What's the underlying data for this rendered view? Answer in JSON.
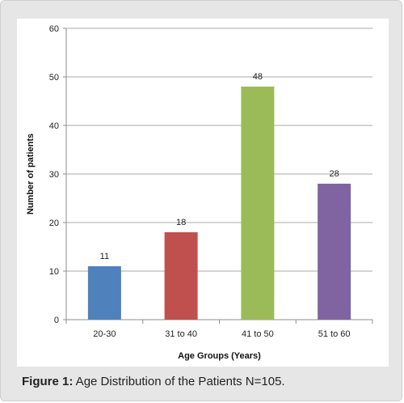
{
  "chart_data": {
    "type": "bar",
    "categories": [
      "20-30",
      "31 to 40",
      "41 to 50",
      "51 to 60"
    ],
    "values": [
      11,
      18,
      48,
      28
    ],
    "data_labels": [
      "11",
      "18",
      "48",
      "28"
    ],
    "colors": [
      "#4f81bd",
      "#c0504d",
      "#9bbb59",
      "#8064a2"
    ],
    "xlabel": "Age Groups (Years)",
    "ylabel": "Number of patients",
    "ylim": [
      0,
      60
    ],
    "yticks": [
      0,
      10,
      20,
      30,
      40,
      50,
      60
    ],
    "ytick_labels": [
      "0",
      "10",
      "20",
      "30",
      "40",
      "50",
      "60"
    ],
    "grid": true,
    "legend": "none"
  },
  "caption": {
    "label": "Figure 1:",
    "text": " Age Distribution of the Patients N=105."
  }
}
